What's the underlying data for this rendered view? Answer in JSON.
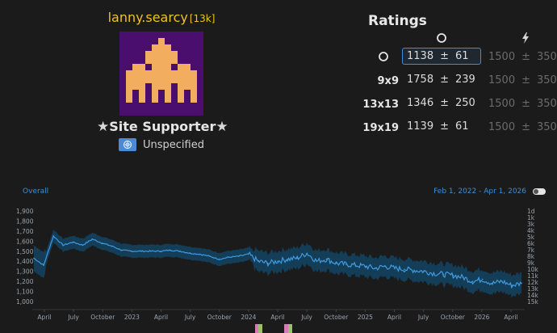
{
  "profile": {
    "username": "lanny.searcy",
    "rank": "[13k]",
    "supporter_label": "Site Supporter",
    "country": "Unspecified"
  },
  "ratings": {
    "title": "Ratings",
    "rows": [
      {
        "label": "",
        "live_rating": "1138",
        "live_dev": "61",
        "blitz_rating": "1500",
        "blitz_dev": "350"
      },
      {
        "label": "9x9",
        "live_rating": "1758",
        "live_dev": "239",
        "blitz_rating": "1500",
        "blitz_dev": "350"
      },
      {
        "label": "13x13",
        "live_rating": "1346",
        "live_dev": "250",
        "blitz_rating": "1500",
        "blitz_dev": "350"
      },
      {
        "label": "19x19",
        "live_rating": "1139",
        "live_dev": "61",
        "blitz_rating": "1500",
        "blitz_dev": "350"
      }
    ],
    "pm": "±"
  },
  "chart": {
    "title": "Overall",
    "range": "Feb 1, 2022 - Apr 1, 2026"
  },
  "colors": {
    "accent": "#3c8ed9",
    "username": "#f0c419",
    "avatar_bg": "#4a0f6e",
    "avatar_fg": "#f2ad5e",
    "band": "#14415e",
    "line": "#3f9ae0"
  },
  "chart_data": {
    "type": "line",
    "title": "Overall",
    "x": [
      "2022-02",
      "2022-03",
      "2022-04",
      "2022-05",
      "2022-06",
      "2022-07",
      "2022-08",
      "2022-09",
      "2022-10",
      "2022-11",
      "2022-12",
      "2023-01",
      "2023-02",
      "2023-03",
      "2023-04",
      "2023-05",
      "2023-06",
      "2023-07",
      "2023-08",
      "2023-09",
      "2023-10",
      "2023-11",
      "2023-12",
      "2024-01",
      "2024-02",
      "2024-03",
      "2024-04",
      "2024-05",
      "2024-06",
      "2024-07",
      "2024-08",
      "2024-09",
      "2024-10",
      "2024-11",
      "2024-12",
      "2025-01",
      "2025-02",
      "2025-03",
      "2025-04",
      "2025-05",
      "2025-06",
      "2025-07",
      "2025-08",
      "2025-09",
      "2025-10",
      "2025-11",
      "2025-12",
      "2026-01",
      "2026-02",
      "2026-03",
      "2026-04"
    ],
    "series": [
      {
        "values": [
          1430,
          1360,
          1650,
          1560,
          1590,
          1560,
          1620,
          1580,
          1550,
          1510,
          1500,
          1500,
          1500,
          1500,
          1510,
          1500,
          1480,
          1470,
          1450,
          1420,
          1440,
          1450,
          1470,
          1400,
          1380,
          1400,
          1420,
          1430,
          1480,
          1400,
          1420,
          1380,
          1370,
          1360,
          1350,
          1330,
          1350,
          1330,
          1320,
          1310,
          1300,
          1280,
          1270,
          1260,
          1240,
          1200,
          1220,
          1180,
          1200,
          1160,
          1180
        ]
      }
    ],
    "xticks": [
      "April",
      "July",
      "October",
      "2023",
      "April",
      "July",
      "October",
      "2024",
      "April",
      "July",
      "October",
      "2025",
      "April",
      "July",
      "October",
      "2026",
      "April"
    ],
    "yticks_left": [
      "1,900",
      "1,800",
      "1,700",
      "1,600",
      "1,500",
      "1,400",
      "1,300",
      "1,200",
      "1,100",
      "1,000"
    ],
    "yticks_right": [
      "1d",
      "1k",
      "3k",
      "4k",
      "5k",
      "6k",
      "7k",
      "8k",
      "9k",
      "10k",
      "11k",
      "12k",
      "13k",
      "14k",
      "15k"
    ],
    "ylim": [
      1000,
      1900
    ],
    "grid": false
  }
}
